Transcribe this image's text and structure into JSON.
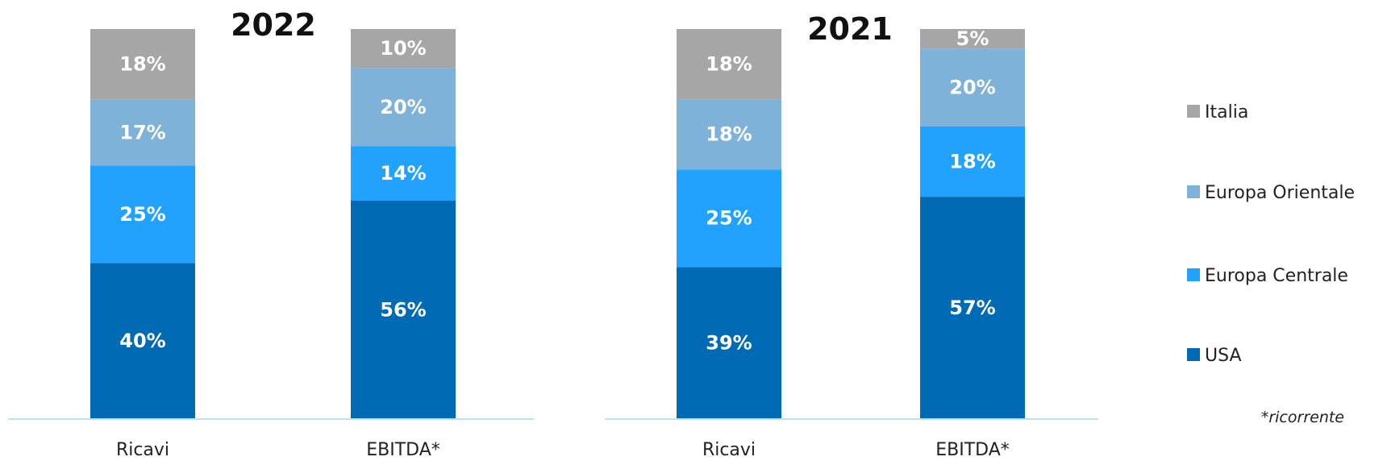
{
  "chart_data": [
    {
      "type": "bar",
      "stacked": true,
      "title": "2022",
      "categories": [
        "Ricavi",
        "EBITDA*"
      ],
      "series": [
        {
          "name": "USA",
          "values": [
            40,
            56
          ]
        },
        {
          "name": "Europa Centrale",
          "values": [
            25,
            14
          ]
        },
        {
          "name": "Europa Orientale",
          "values": [
            17,
            20
          ]
        },
        {
          "name": "Italia",
          "values": [
            18,
            10
          ]
        }
      ],
      "unit": "%",
      "ylim": [
        0,
        100
      ],
      "grid": false
    },
    {
      "type": "bar",
      "stacked": true,
      "title": "2021",
      "categories": [
        "Ricavi",
        "EBITDA*"
      ],
      "series": [
        {
          "name": "USA",
          "values": [
            39,
            57
          ]
        },
        {
          "name": "Europa Centrale",
          "values": [
            25,
            18
          ]
        },
        {
          "name": "Europa Orientale",
          "values": [
            18,
            20
          ]
        },
        {
          "name": "Italia",
          "values": [
            18,
            5
          ]
        }
      ],
      "unit": "%",
      "ylim": [
        0,
        100
      ],
      "grid": false
    }
  ],
  "legend": {
    "placement": "right",
    "items": [
      {
        "name": "Italia",
        "color": "#a6a6a6"
      },
      {
        "name": "Europa Orientale",
        "color": "#7fb2d9"
      },
      {
        "name": "Europa Centrale",
        "color": "#22a2ff"
      },
      {
        "name": "USA",
        "color": "#006ab4"
      }
    ]
  },
  "colors": {
    "USA": "#006ab4",
    "Europa Centrale": "#22a2ff",
    "Europa Orientale": "#7fb2d9",
    "Italia": "#a6a6a6",
    "axis": "#bfe0f0"
  },
  "footnote": "*ricorrente"
}
